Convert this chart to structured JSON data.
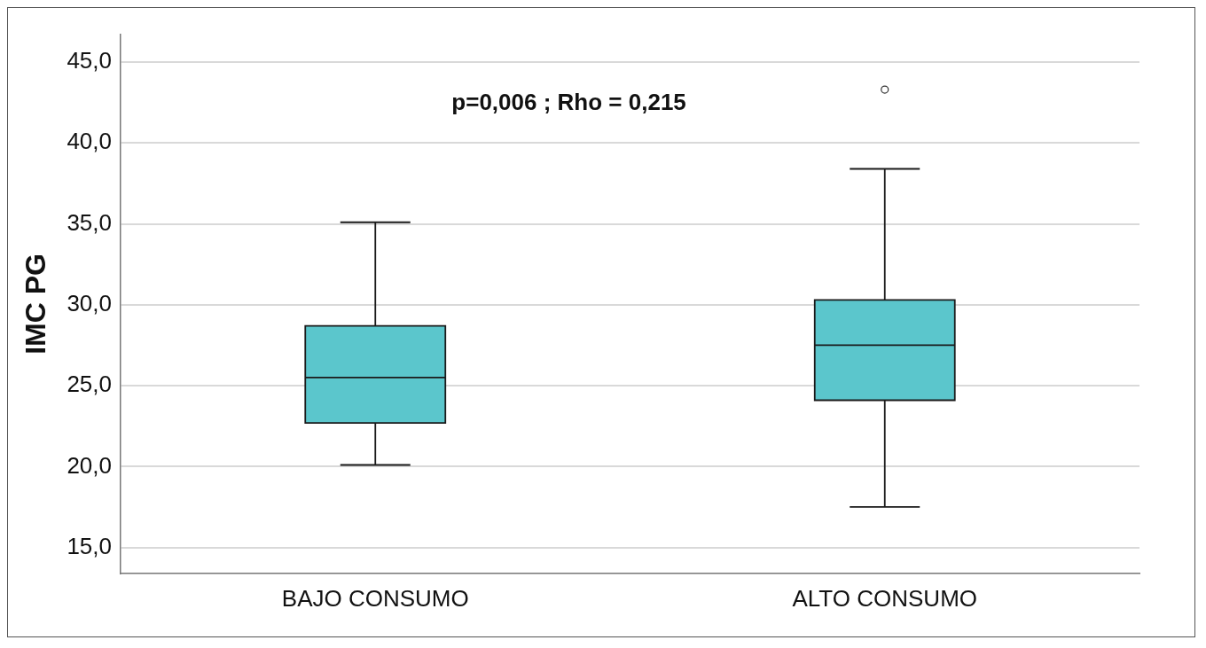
{
  "chart_data": {
    "type": "box",
    "ylabel": "IMC PG",
    "categories": [
      "BAJO CONSUMO",
      "ALTO CONSUMO"
    ],
    "color": "#5bc6cc",
    "boxes": [
      {
        "low": 20.1,
        "q1": 22.7,
        "median": 25.5,
        "q3": 28.7,
        "high": 35.1
      },
      {
        "low": 17.5,
        "q1": 24.1,
        "median": 27.5,
        "q3": 30.3,
        "high": 38.4,
        "outliers": [
          43.3
        ]
      }
    ],
    "ylim": [
      13.4,
      46.7
    ],
    "yticks": [
      {
        "value": 15,
        "label": "15,0"
      },
      {
        "value": 20,
        "label": "20,0"
      },
      {
        "value": 25,
        "label": "25,0"
      },
      {
        "value": 30,
        "label": "30,0"
      },
      {
        "value": 35,
        "label": "35,0"
      },
      {
        "value": 40,
        "label": "40,0"
      },
      {
        "value": 45,
        "label": "45,0"
      }
    ],
    "grid": "y",
    "annotations": [
      "p=0,006 ; Rho = 0,215"
    ]
  }
}
